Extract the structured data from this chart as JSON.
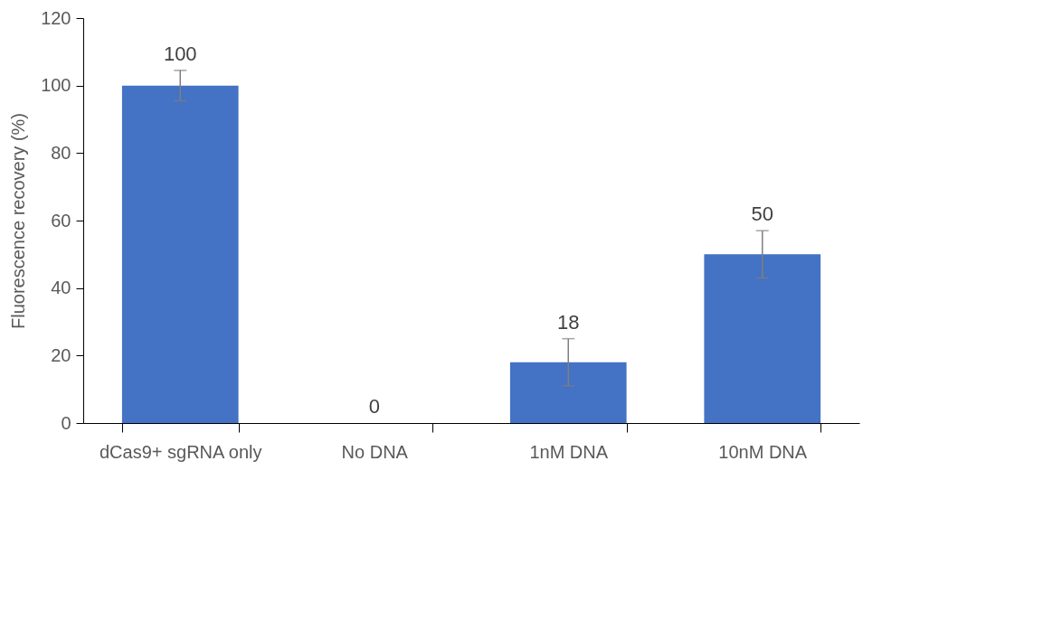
{
  "chart_data": {
    "type": "bar",
    "ylabel": "Fluorescence recovery (%)",
    "categories": [
      "dCas9+ sgRNA only",
      "No DNA",
      "1nM DNA",
      "10nM DNA"
    ],
    "values": [
      100,
      0,
      18,
      50
    ],
    "errors": [
      4.5,
      null,
      7,
      7
    ],
    "color": "#4472c4",
    "ylim": [
      0,
      120
    ],
    "yticks": [
      0,
      20,
      40,
      60,
      80,
      100,
      120
    ],
    "grid": false,
    "data_labels": true
  }
}
